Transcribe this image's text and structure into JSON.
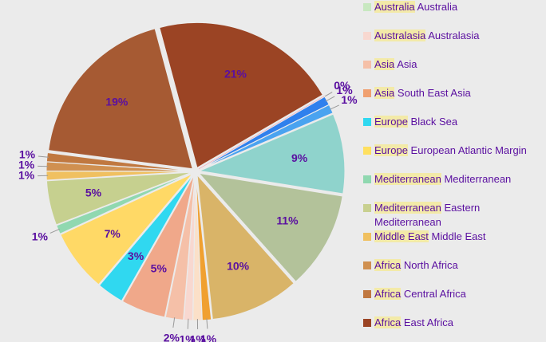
{
  "chart_data": {
    "type": "pie",
    "slices": [
      {
        "value": 21,
        "label": "21%",
        "color": "#9b4424"
      },
      {
        "value": 0,
        "label": "0%",
        "color": "#f4a6b8"
      },
      {
        "value": 1,
        "label": "1%",
        "color": "#2f80ed"
      },
      {
        "value": 1,
        "label": "1%",
        "color": "#4aa3f0"
      },
      {
        "value": 9,
        "label": "9%",
        "color": "#8fd3cc"
      },
      {
        "value": 11,
        "label": "11%",
        "color": "#b3c29a"
      },
      {
        "value": 10,
        "label": "10%",
        "color": "#d9b468"
      },
      {
        "value": 1,
        "label": "1%",
        "color": "#f0a030"
      },
      {
        "value": 1,
        "label": "1%",
        "color": "#fbe0c8"
      },
      {
        "value": 1,
        "label": "1%",
        "color": "#f8d8d0"
      },
      {
        "value": 2,
        "label": "2%",
        "color": "#f5c0a8"
      },
      {
        "value": 5,
        "label": "5%",
        "color": "#f0a88a"
      },
      {
        "value": 3,
        "label": "3%",
        "color": "#30d8f0"
      },
      {
        "value": 7,
        "label": "7%",
        "color": "#ffd966"
      },
      {
        "value": 1,
        "label": "1%",
        "color": "#90d8b0"
      },
      {
        "value": 5,
        "label": "5%",
        "color": "#c6d08f"
      },
      {
        "value": 1,
        "label": "1%",
        "color": "#f0c060"
      },
      {
        "value": 1,
        "label": "1%",
        "color": "#d09050"
      },
      {
        "value": 1,
        "label": "1%",
        "color": "#c07840"
      },
      {
        "value": 19,
        "label": "19%",
        "color": "#a65a33"
      }
    ],
    "legend": [
      {
        "group": "Australia",
        "name": "Australia",
        "color": "#c8e8c0"
      },
      {
        "group": "Australasia",
        "name": "Australasia",
        "color": "#f8d8d0"
      },
      {
        "group": "Asia",
        "name": "Asia",
        "color": "#f5c0a8"
      },
      {
        "group": "Asia",
        "name": "South East Asia",
        "color": "#f0a070"
      },
      {
        "group": "Europe",
        "name": "Black Sea",
        "color": "#30d8f0"
      },
      {
        "group": "Europe",
        "name": "European Atlantic Margin",
        "color": "#ffe060"
      },
      {
        "group": "Mediterranean",
        "name": "Mediterranean",
        "color": "#90d8b0"
      },
      {
        "group": "Mediterranean",
        "name": "Eastern Mediterranean",
        "color": "#c8d090"
      },
      {
        "group": "Middle East",
        "name": "Middle East",
        "color": "#f0c060"
      },
      {
        "group": "Africa",
        "name": "North Africa",
        "color": "#d09050"
      },
      {
        "group": "Africa",
        "name": "Central Africa",
        "color": "#c07840"
      },
      {
        "group": "Africa",
        "name": "East Africa",
        "color": "#9b4424"
      }
    ]
  }
}
